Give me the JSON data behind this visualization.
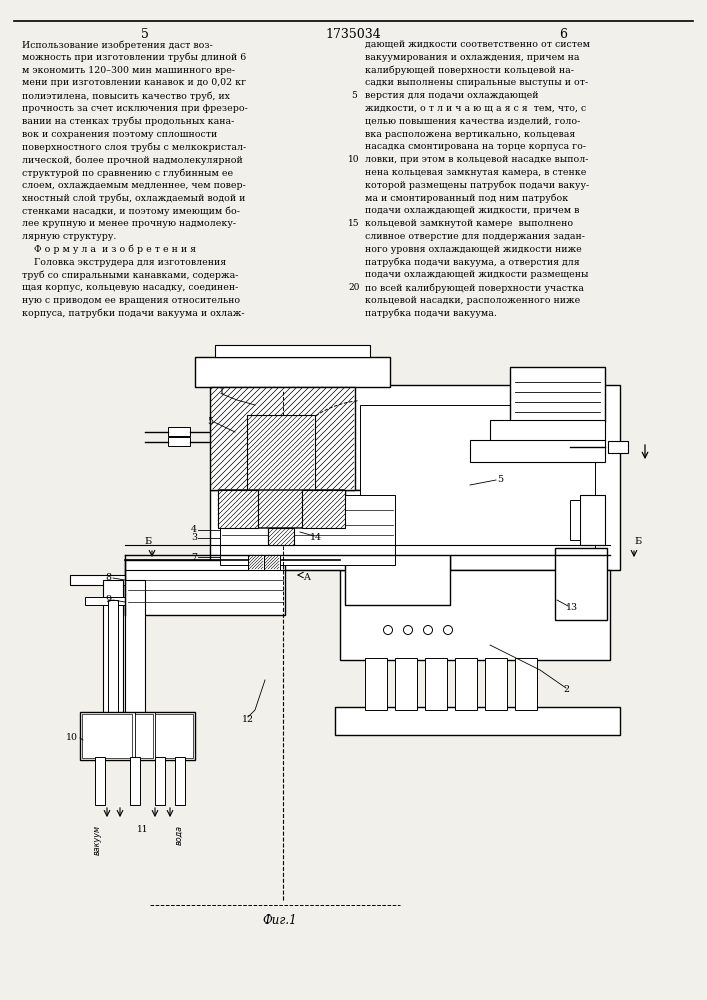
{
  "bg_color": "#f2f0eb",
  "page_number_left": "5",
  "page_number_center": "1735034",
  "page_number_right": "6",
  "fig_caption": "Фиг.1",
  "left_col_lines": [
    "Использование изобретения даст воз-",
    "можность при изготовлении трубы длиной 6",
    "м экономить 120–300 мин машинного вре-",
    "мени при изготовлении канавок и до 0,02 кг",
    "полиэтилена, повысить качество труб, их",
    "прочность за счет исключения при фрезеро-",
    "вании на стенках трубы продольных кана-",
    "вок и сохранения поэтому сплошности",
    "поверхностного слоя трубы с мелкокристал-",
    "лической, более прочной надмолекулярной",
    "структурой по сравнению с глубинным ее",
    "слоем, охлаждаемым медленнее, чем повер-",
    "хностный слой трубы, охлаждаемый водой и",
    "стенками насадки, и поэтому имеющим бо-",
    "лее крупную и менее прочную надмолеку-",
    "лярную структуру.",
    "    Ф о р м у л а  и з о б р е т е н и я",
    "    Головка экструдера для изготовления",
    "труб со спиральными канавками, содержа-",
    "щая корпус, кольцевую насадку, соединен-",
    "ную с приводом ее вращения относительно",
    "корпуса, патрубки подачи вакуума и охлаж-"
  ],
  "right_col_lines": [
    "дающей жидкости соответственно от систем",
    "вакуумирования и охлаждения, причем на",
    "калибрующей поверхности кольцевой на-",
    "садки выполнены спиральные выступы и от-",
    "верстия для подачи охлаждающей",
    "жидкости, о т л и ч а ю щ а я с я  тем, что, с",
    "целью повышения качества изделий, голо-",
    "вка расположена вертикально, кольцевая",
    "насадка смонтирована на торце корпуса го-",
    "ловки, при этом в кольцевой насадке выпол-",
    "нена кольцевая замкнутая камера, в стенке",
    "которой размещены патрубок подачи вакуу-",
    "ма и смонтированный под ним патрубок",
    "подачи охлаждающей жидкости, причем в",
    "кольцевой замкнутой камере  выполнено",
    "сливное отверстие для поддержания задан-",
    "ного уровня охлаждающей жидкости ниже",
    "патрубка подачи вакуума, а отверстия для",
    "подачи охлаждающей жидкости размещены",
    "по всей калибрующей поверхности участка",
    "кольцевой насадки, расположенного ниже",
    "патрубка подачи вакуума."
  ]
}
